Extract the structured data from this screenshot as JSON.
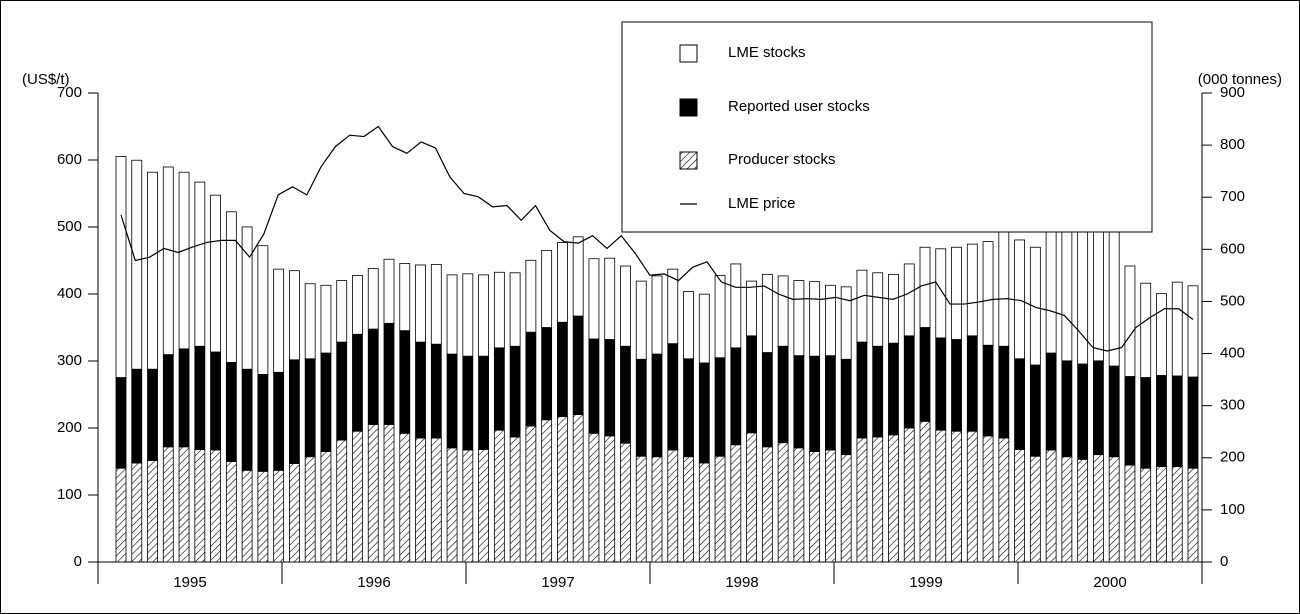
{
  "chart_data": {
    "type": "bar",
    "stacked": true,
    "y_label": "(US$/t)",
    "y2_label": "(000 tonnes)",
    "x_labels": [
      "1995",
      "1996",
      "1997",
      "1998",
      "1999",
      "2000"
    ],
    "ylim": [
      0,
      700
    ],
    "yticks": [
      0,
      100,
      200,
      300,
      400,
      500,
      600,
      700
    ],
    "y2lim": [
      0,
      900
    ],
    "y2ticks": [
      0,
      100,
      200,
      300,
      400,
      500,
      600,
      700,
      800,
      900
    ],
    "legend": "top-right",
    "series": [
      {
        "name": "Producer stocks",
        "color": "#000000",
        "pattern": "hatch",
        "axis": "y2",
        "values": [
          180,
          190,
          195,
          221,
          221,
          216,
          215,
          193,
          176,
          174,
          176,
          189,
          202,
          212,
          234,
          251,
          264,
          264,
          247,
          238,
          238,
          219,
          215,
          216,
          253,
          240,
          261,
          273,
          279,
          283,
          247,
          242,
          228,
          203,
          202,
          215,
          202,
          190,
          203,
          225,
          248,
          221,
          229,
          219,
          212,
          215,
          206,
          238,
          240,
          244,
          257,
          270,
          253,
          251,
          251,
          242,
          238,
          216,
          203,
          215,
          202,
          197,
          206,
          202,
          186,
          180,
          183,
          183,
          180
        ]
      },
      {
        "name": "Reported user stocks",
        "color": "#000000",
        "axis": "y2",
        "values": [
          174,
          180,
          175,
          177,
          188,
          198,
          188,
          190,
          194,
          186,
          188,
          199,
          188,
          189,
          188,
          186,
          183,
          194,
          197,
          184,
          180,
          180,
          180,
          179,
          158,
          174,
          180,
          177,
          181,
          189,
          181,
          185,
          186,
          186,
          197,
          204,
          188,
          192,
          189,
          186,
          186,
          181,
          185,
          177,
          183,
          181,
          183,
          184,
          174,
          176,
          177,
          180,
          177,
          176,
          183,
          174,
          176,
          174,
          175,
          186,
          184,
          183,
          180,
          174,
          170,
          174,
          175,
          174,
          175
        ]
      },
      {
        "name": "LME stocks",
        "color": "#ffffff",
        "axis": "y2",
        "values": [
          424,
          401,
          378,
          360,
          339,
          315,
          301,
          289,
          273,
          247,
          198,
          171,
          144,
          130,
          118,
          113,
          116,
          123,
          129,
          148,
          153,
          152,
          158,
          156,
          145,
          141,
          138,
          148,
          153,
          152,
          154,
          156,
          154,
          150,
          150,
          143,
          129,
          132,
          158,
          161,
          105,
          150,
          135,
          144,
          143,
          135,
          139,
          138,
          141,
          132,
          138,
          154,
          171,
          177,
          176,
          199,
          220,
          228,
          226,
          246,
          248,
          255,
          267,
          258,
          212,
          181,
          157,
          180,
          175
        ]
      },
      {
        "name": "LME price",
        "type": "line",
        "color": "#000000",
        "axis": "y",
        "values": [
          518,
          450,
          455,
          468,
          462,
          470,
          477,
          480,
          480,
          455,
          490,
          548,
          560,
          548,
          590,
          620,
          637,
          635,
          650,
          620,
          610,
          627,
          618,
          575,
          550,
          545,
          530,
          532,
          510,
          532,
          495,
          478,
          476,
          487,
          468,
          487,
          460,
          428,
          430,
          420,
          440,
          448,
          418,
          410,
          410,
          412,
          400,
          392,
          393,
          392,
          395,
          390,
          398,
          395,
          392,
          400,
          412,
          418,
          385,
          385,
          388,
          392,
          393,
          390,
          380,
          375,
          368,
          345,
          320,
          315,
          320,
          350,
          365,
          378,
          378,
          362
        ]
      }
    ]
  }
}
